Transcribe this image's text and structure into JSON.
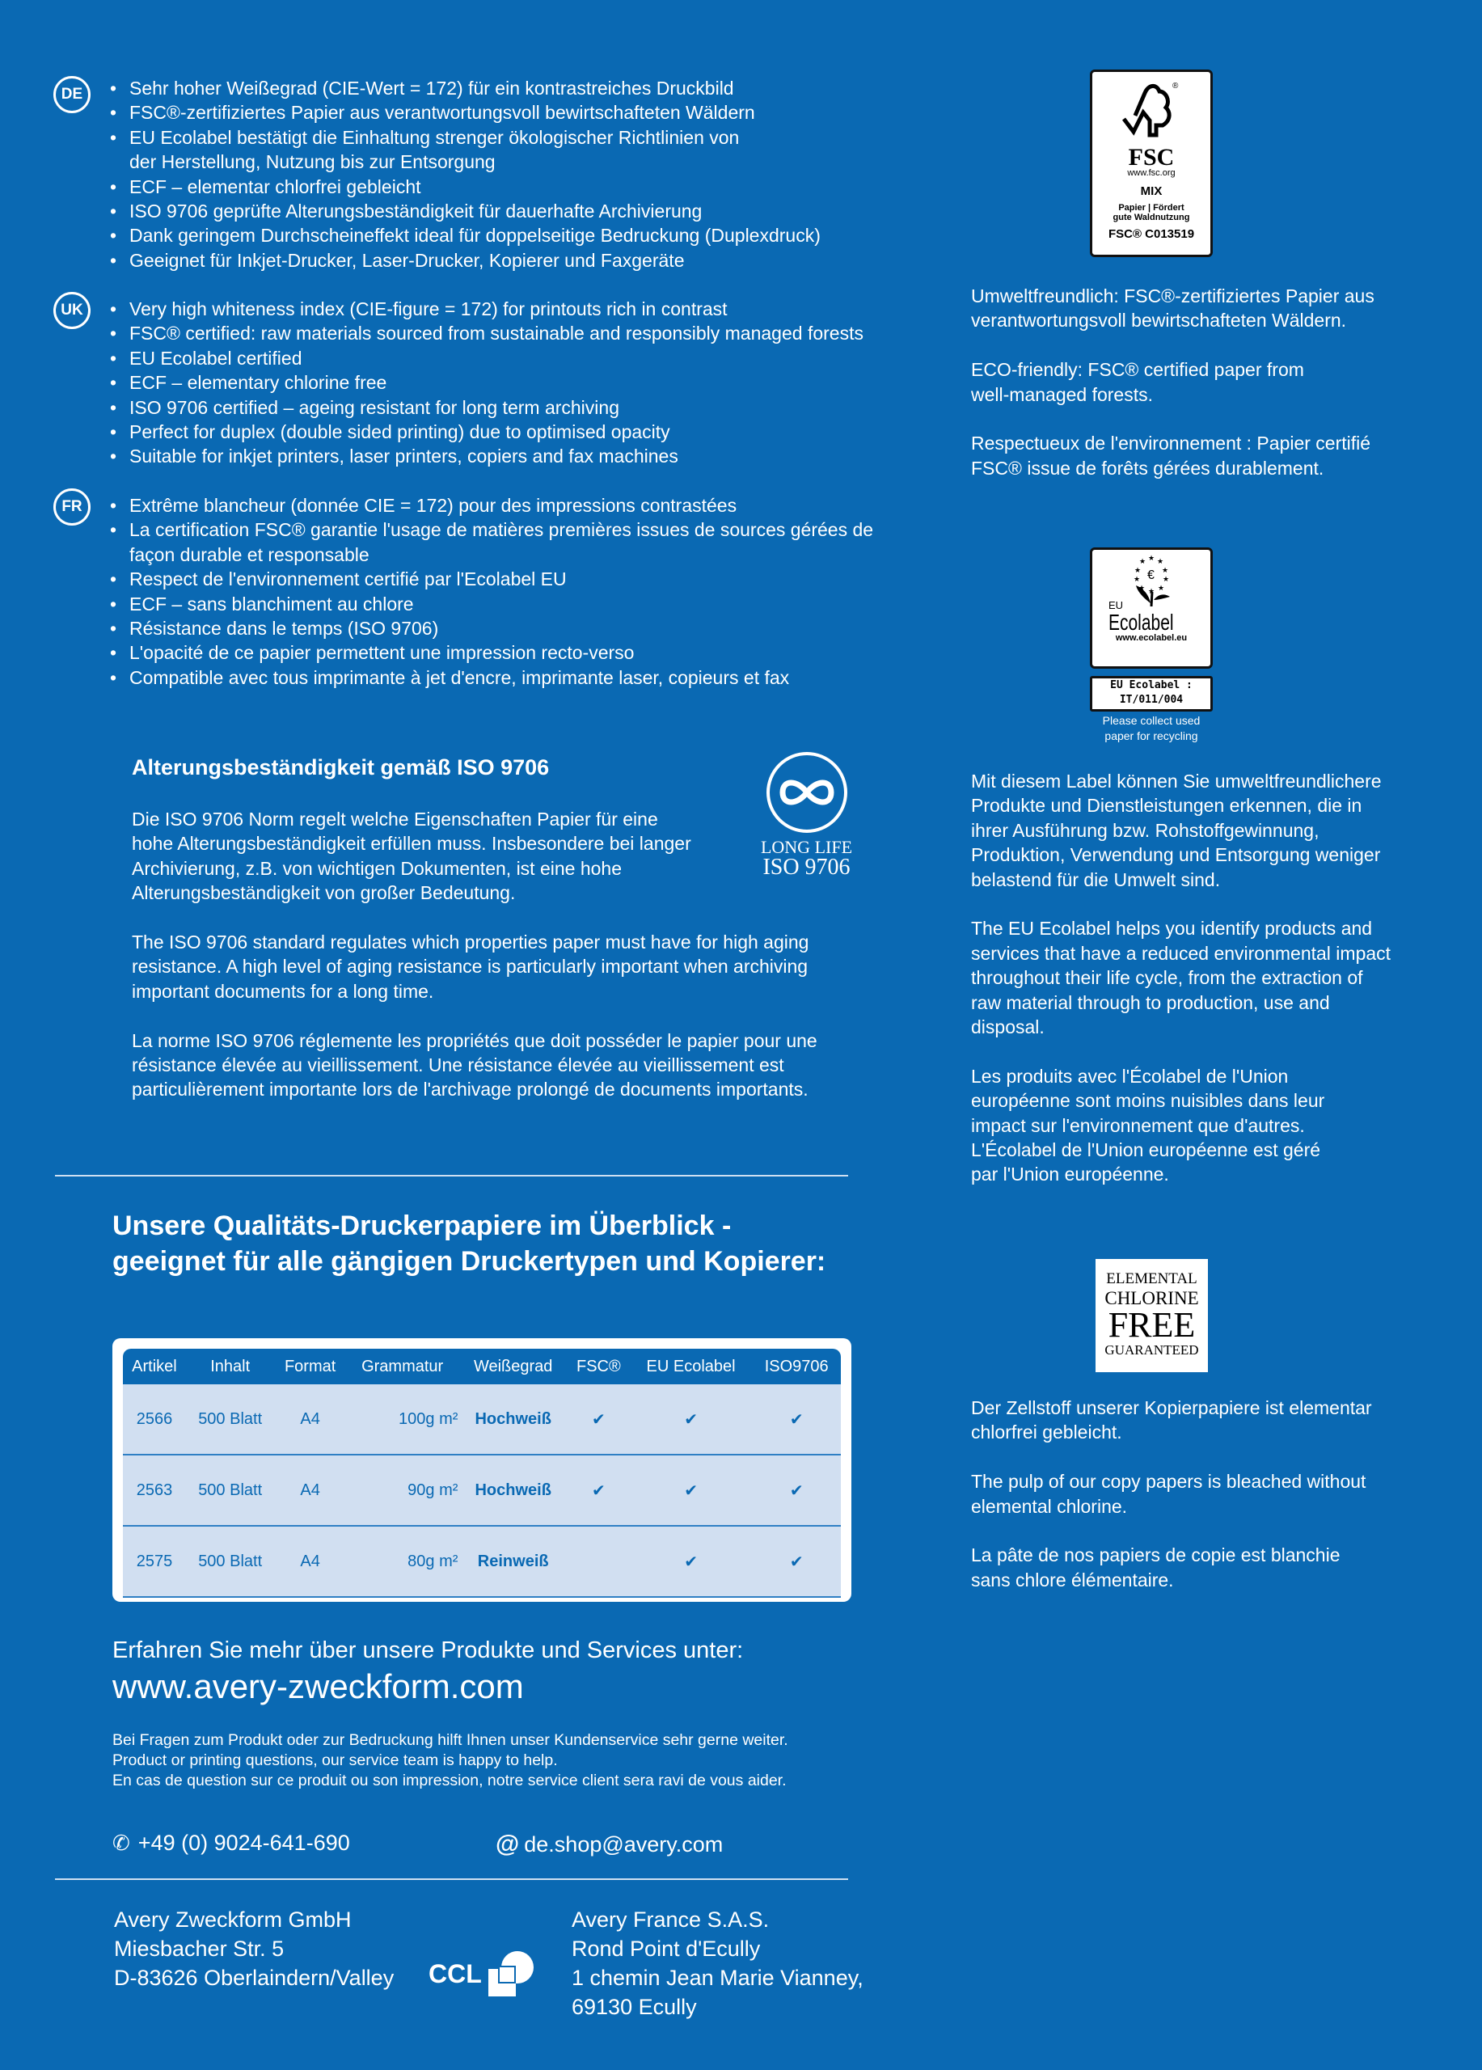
{
  "features": {
    "de": {
      "badge": "DE",
      "items": [
        "Sehr hoher Weißegrad (CIE-Wert = 172) für ein kontrastreiches Druckbild",
        "FSC®-zertifiziertes Papier aus verantwortungsvoll bewirtschafteten Wäldern",
        "EU Ecolabel bestätigt die Einhaltung strenger ökologischer Richtlinien von der Herstellung, Nutzung bis zur Entsorgung",
        "ECF – elementar chlorfrei gebleicht",
        "ISO 9706 geprüfte Alterungsbeständigkeit für dauerhafte Archivierung",
        "Dank geringem Durchscheineffekt ideal für doppelseitige Bedruckung (Duplexdruck)",
        "Geeignet für Inkjet-Drucker, Laser-Drucker, Kopierer und Faxgeräte"
      ]
    },
    "uk": {
      "badge": "UK",
      "items": [
        "Very high whiteness index (CIE-figure = 172) for printouts rich in contrast",
        "FSC® certified: raw materials sourced from sustainable and responsibly managed forests",
        "EU Ecolabel certified",
        "ECF – elementary chlorine free",
        "ISO 9706 certified – ageing resistant for long term archiving",
        "Perfect for duplex (double sided printing) due to optimised opacity",
        "Suitable for inkjet printers, laser printers, copiers and fax machines"
      ]
    },
    "fr": {
      "badge": "FR",
      "items": [
        "Extrême blancheur (donnée CIE = 172) pour des impressions contrastées",
        "La certification FSC® garantie l'usage de matières premières issues de sources gérées de façon durable et responsable",
        "Respect de l'environnement certifié par l'Ecolabel EU",
        "ECF – sans blanchiment au chlore",
        "Résistance dans le temps (ISO 9706)",
        "L'opacité de ce papier permettent une impression recto-verso",
        "Compatible avec tous imprimante à jet d'encre, imprimante laser, copieurs et fax"
      ]
    }
  },
  "iso": {
    "heading": "Alterungsbeständigkeit gemäß ISO 9706",
    "paragraphs": [
      "Die ISO 9706 Norm regelt welche Eigenschaften Papier für eine hohe  Alterungsbeständigkeit erfüllen muss. Insbesondere bei langer Archivierung,  z.B. von wichtigen Dokumenten, ist eine hohe Alterungsbeständigkeit von großer Bedeutung.",
      "The ISO 9706 standard regulates which properties paper must have for high aging resistance. A high level of aging resistance is particularly important when archiving important documents for a long time.",
      "La norme ISO 9706 réglemente les propriétés que doit posséder le papier pour une résistance élevée au vieillissement. Une résistance élevée au vieillissement est particulièrement importante lors de l'archivage prolongé de documents importants."
    ],
    "logo_line1": "LONG LIFE",
    "logo_line2": "ISO 9706"
  },
  "overview": {
    "heading_line1": "Unsere Qualitäts-Druckerpapiere im Überblick -",
    "heading_line2": "geeignet für alle gängigen Druckertypen und Kopierer:",
    "columns": [
      "Artikel",
      "Inhalt",
      "Format",
      "Grammatur",
      "Weißegrad",
      "FSC®",
      "EU Ecolabel",
      "ISO9706"
    ],
    "rows": [
      [
        "2566",
        "500 Blatt",
        "A4",
        "100g m²",
        "Hochweiß",
        "✔",
        "✔",
        "✔"
      ],
      [
        "2563",
        "500 Blatt",
        "A4",
        "90g m²",
        "Hochweiß",
        "✔",
        "✔",
        "✔"
      ],
      [
        "2575",
        "500 Blatt",
        "A4",
        "80g m²",
        "Reinweiß",
        "",
        "✔",
        "✔"
      ]
    ]
  },
  "contact": {
    "intro": "Erfahren Sie mehr über unsere Produkte und Services unter:",
    "url": "www.avery-zweckform.com",
    "service_lines": [
      "Bei Fragen zum Produkt oder zur Bedruckung hilft Ihnen unser Kundenservice sehr gerne weiter.",
      "Product or printing questions, our service team is happy to help.",
      "En cas de question sur ce produit ou son impression, notre service client sera ravi de vous aider."
    ],
    "phone": "+49 (0) 9024-641-690",
    "email": "de.shop@avery.com",
    "email_icon": "@"
  },
  "addresses": {
    "de": [
      "Avery Zweckform GmbH",
      "Miesbacher Str. 5",
      "D-83626 Oberlaindern/Valley"
    ],
    "fr": [
      "Avery France S.A.S.",
      "Rond Point d'Ecully",
      "1 chemin Jean Marie Vianney,",
      "69130 Ecully"
    ],
    "ccl_logo": "CCL"
  },
  "fsc": {
    "logo_name": "FSC",
    "logo_url": "www.fsc.org",
    "mix": "MIX",
    "logo_line1": "Papier | Fördert",
    "logo_line2": "gute Waldnutzung",
    "code": "FSC® C013519",
    "paragraphs": [
      "Umweltfreundlich: FSC®-zertifiziertes Papier aus verantwortungsvoll bewirtschafteten Wäldern.",
      "ECO-friendly: FSC® certified paper from well-managed forests.",
      "Respectueux de l'environnement : Papier certifié FSC® issue de forêts gérées durablement."
    ]
  },
  "ecolabel": {
    "logo_eu": "EU",
    "logo_name": "Ecolabel",
    "logo_url": "www.ecolabel.eu",
    "code_line1": "EU Ecolabel :",
    "code_line2": "IT/011/004",
    "recycle_line1": "Please collect used",
    "recycle_line2": "paper for recycling",
    "paragraphs": [
      "Mit diesem Label können Sie umweltfreundlichere Produkte und Dienstleistungen erkennen, die in ihrer Ausführung bzw. Rohstoffgewinnung, Produktion, Verwendung und Entsorgung weniger belastend für die Umwelt sind.",
      "The EU Ecolabel helps you identify products and services that have a reduced environmental impact throughout their life cycle, from the extraction of raw material through to production, use and disposal.",
      "Les produits avec l'Écolabel de l'Union européenne sont moins nuisibles dans leur impact sur l'environnement que d'autres. L'Écolabel de l'Union européenne est géré par l'Union européenne."
    ]
  },
  "ecf": {
    "logo_lines": [
      "ELEMENTAL",
      "CHLORINE",
      "FREE",
      "GUARANTEED"
    ],
    "paragraphs": [
      "Der Zellstoff unserer Kopierpapiere ist elementar chlorfrei gebleicht.",
      "The pulp of our copy papers is bleached without elemental chlorine.",
      "La pâte de nos papiers de copie est blanchie sans chlore élémentaire."
    ]
  },
  "colors": {
    "background": "#0a69b3",
    "table_row": "#d1dff1",
    "text": "#ffffff"
  }
}
